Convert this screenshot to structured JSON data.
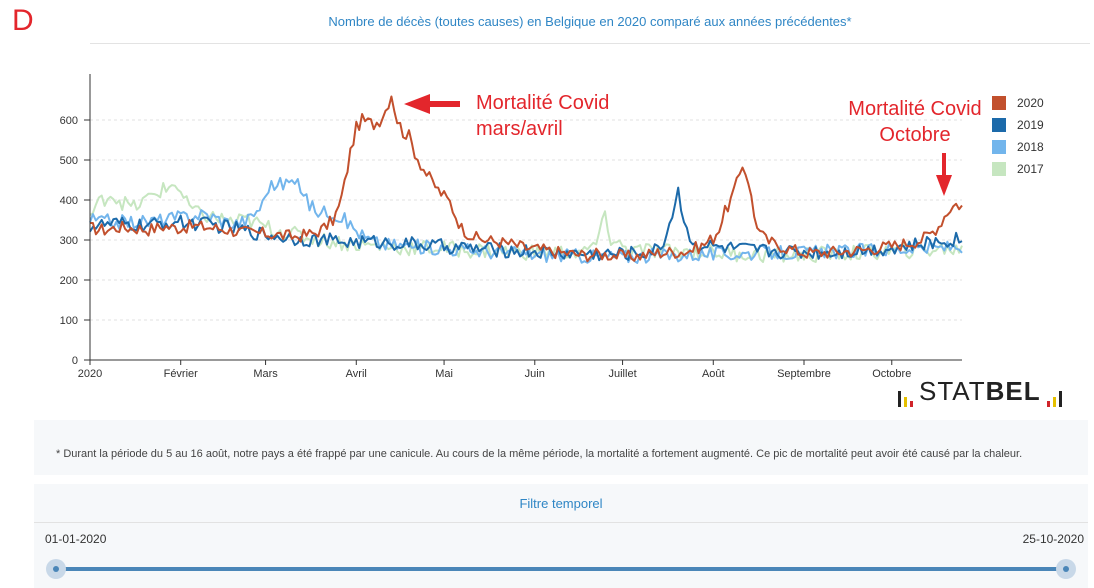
{
  "panel_letter": "D",
  "chart_data": {
    "type": "line",
    "title": "Nombre de décès (toutes causes) en Belgique en 2020 comparé aux années précédentes*",
    "ylim": [
      0,
      700
    ],
    "yticks": [
      0,
      100,
      200,
      300,
      400,
      500,
      600
    ],
    "x_range_days": [
      1,
      299
    ],
    "x_tick_days": [
      1,
      32,
      61,
      92,
      122,
      153,
      183,
      214,
      245,
      275
    ],
    "xtick_labels": [
      "2020",
      "Février",
      "Mars",
      "Avril",
      "Mai",
      "Juin",
      "Juillet",
      "Août",
      "Septembre",
      "Octobre"
    ],
    "grid": true,
    "legend_position": "right",
    "series": [
      {
        "name": "2020",
        "color": "#c2502d",
        "anchors": [
          [
            1,
            330
          ],
          [
            6,
            325
          ],
          [
            11,
            332
          ],
          [
            16,
            330
          ],
          [
            21,
            326
          ],
          [
            26,
            334
          ],
          [
            31,
            330
          ],
          [
            36,
            335
          ],
          [
            41,
            332
          ],
          [
            46,
            328
          ],
          [
            51,
            322
          ],
          [
            56,
            318
          ],
          [
            61,
            316
          ],
          [
            66,
            312
          ],
          [
            71,
            308
          ],
          [
            74,
            312
          ],
          [
            78,
            318
          ],
          [
            81,
            330
          ],
          [
            84,
            350
          ],
          [
            86,
            380
          ],
          [
            88,
            440
          ],
          [
            90,
            520
          ],
          [
            92,
            580
          ],
          [
            94,
            600
          ],
          [
            96,
            595
          ],
          [
            98,
            590
          ],
          [
            100,
            600
          ],
          [
            102,
            625
          ],
          [
            104,
            665
          ],
          [
            106,
            600
          ],
          [
            108,
            570
          ],
          [
            110,
            560
          ],
          [
            112,
            520
          ],
          [
            114,
            490
          ],
          [
            116,
            465
          ],
          [
            118,
            445
          ],
          [
            120,
            425
          ],
          [
            122,
            410
          ],
          [
            124,
            395
          ],
          [
            126,
            360
          ],
          [
            128,
            330
          ],
          [
            130,
            318
          ],
          [
            133,
            305
          ],
          [
            136,
            300
          ],
          [
            140,
            296
          ],
          [
            145,
            290
          ],
          [
            150,
            280
          ],
          [
            155,
            276
          ],
          [
            160,
            270
          ],
          [
            165,
            266
          ],
          [
            170,
            262
          ],
          [
            175,
            265
          ],
          [
            180,
            262
          ],
          [
            185,
            258
          ],
          [
            190,
            262
          ],
          [
            195,
            268
          ],
          [
            200,
            270
          ],
          [
            205,
            272
          ],
          [
            210,
            285
          ],
          [
            214,
            305
          ],
          [
            216,
            330
          ],
          [
            218,
            370
          ],
          [
            220,
            400
          ],
          [
            222,
            440
          ],
          [
            224,
            490
          ],
          [
            226,
            450
          ],
          [
            228,
            360
          ],
          [
            230,
            320
          ],
          [
            232,
            300
          ],
          [
            235,
            290
          ],
          [
            240,
            278
          ],
          [
            245,
            268
          ],
          [
            250,
            268
          ],
          [
            255,
            270
          ],
          [
            260,
            272
          ],
          [
            265,
            275
          ],
          [
            270,
            280
          ],
          [
            275,
            285
          ],
          [
            280,
            292
          ],
          [
            285,
            300
          ],
          [
            288,
            315
          ],
          [
            291,
            335
          ],
          [
            293,
            360
          ],
          [
            295,
            380
          ],
          [
            297,
            390
          ],
          [
            299,
            385
          ]
        ],
        "amp": 16
      },
      {
        "name": "2019",
        "color": "#1c6aaa",
        "anchors": [
          [
            1,
            335
          ],
          [
            10,
            340
          ],
          [
            20,
            335
          ],
          [
            30,
            345
          ],
          [
            40,
            340
          ],
          [
            50,
            330
          ],
          [
            60,
            315
          ],
          [
            70,
            305
          ],
          [
            80,
            300
          ],
          [
            90,
            295
          ],
          [
            100,
            295
          ],
          [
            110,
            290
          ],
          [
            120,
            285
          ],
          [
            130,
            280
          ],
          [
            140,
            275
          ],
          [
            150,
            272
          ],
          [
            160,
            268
          ],
          [
            170,
            265
          ],
          [
            180,
            265
          ],
          [
            190,
            268
          ],
          [
            195,
            275
          ],
          [
            198,
            310
          ],
          [
            200,
            370
          ],
          [
            202,
            428
          ],
          [
            203,
            380
          ],
          [
            205,
            320
          ],
          [
            208,
            290
          ],
          [
            215,
            282
          ],
          [
            225,
            276
          ],
          [
            235,
            272
          ],
          [
            245,
            270
          ],
          [
            255,
            270
          ],
          [
            265,
            275
          ],
          [
            275,
            280
          ],
          [
            285,
            288
          ],
          [
            295,
            300
          ],
          [
            299,
            305
          ]
        ],
        "amp": 18
      },
      {
        "name": "2018",
        "color": "#72b5ec",
        "anchors": [
          [
            1,
            350
          ],
          [
            10,
            345
          ],
          [
            20,
            345
          ],
          [
            30,
            355
          ],
          [
            40,
            365
          ],
          [
            50,
            340
          ],
          [
            55,
            350
          ],
          [
            60,
            390
          ],
          [
            62,
            435
          ],
          [
            66,
            440
          ],
          [
            70,
            445
          ],
          [
            74,
            425
          ],
          [
            76,
            385
          ],
          [
            80,
            370
          ],
          [
            84,
            370
          ],
          [
            88,
            350
          ],
          [
            95,
            305
          ],
          [
            100,
            290
          ],
          [
            110,
            285
          ],
          [
            120,
            280
          ],
          [
            130,
            275
          ],
          [
            140,
            270
          ],
          [
            150,
            265
          ],
          [
            160,
            262
          ],
          [
            170,
            260
          ],
          [
            180,
            258
          ],
          [
            190,
            260
          ],
          [
            200,
            262
          ],
          [
            210,
            265
          ],
          [
            220,
            265
          ],
          [
            230,
            268
          ],
          [
            240,
            268
          ],
          [
            250,
            270
          ],
          [
            260,
            272
          ],
          [
            270,
            275
          ],
          [
            280,
            278
          ],
          [
            290,
            280
          ],
          [
            299,
            285
          ]
        ],
        "amp": 18
      },
      {
        "name": "2017",
        "color": "#c6e6c0",
        "anchors": [
          [
            1,
            360
          ],
          [
            5,
            400
          ],
          [
            8,
            415
          ],
          [
            12,
            395
          ],
          [
            16,
            380
          ],
          [
            20,
            400
          ],
          [
            24,
            420
          ],
          [
            28,
            430
          ],
          [
            30,
            445
          ],
          [
            34,
            390
          ],
          [
            38,
            365
          ],
          [
            44,
            355
          ],
          [
            50,
            345
          ],
          [
            55,
            350
          ],
          [
            60,
            335
          ],
          [
            70,
            315
          ],
          [
            80,
            300
          ],
          [
            90,
            290
          ],
          [
            100,
            285
          ],
          [
            110,
            280
          ],
          [
            120,
            280
          ],
          [
            130,
            275
          ],
          [
            140,
            272
          ],
          [
            150,
            270
          ],
          [
            160,
            268
          ],
          [
            170,
            268
          ],
          [
            175,
            300
          ],
          [
            177,
            370
          ],
          [
            179,
            300
          ],
          [
            185,
            275
          ],
          [
            195,
            272
          ],
          [
            205,
            270
          ],
          [
            215,
            268
          ],
          [
            225,
            265
          ],
          [
            235,
            262
          ],
          [
            245,
            262
          ],
          [
            255,
            265
          ],
          [
            265,
            268
          ],
          [
            275,
            272
          ],
          [
            285,
            275
          ],
          [
            295,
            278
          ],
          [
            299,
            275
          ]
        ],
        "amp": 20
      }
    ]
  },
  "annotations": {
    "covid1_line1": "Mortalité Covid",
    "covid1_line2": "mars/avril",
    "covid2_line1": "Mortalité Covid",
    "covid2_line2": "Octobre"
  },
  "logo": {
    "part1": "STAT",
    "part2": "BEL"
  },
  "footnote": "* Durant la période du 5 au 16 août, notre pays a été frappé par une canicule. Au cours de la même période, la mortalité a fortement augmenté. Ce pic de mortalité peut avoir été causé par la chaleur.",
  "time_filter": {
    "title": "Filtre temporel",
    "start_label": "01-01-2020",
    "end_label": "25-10-2020",
    "range_fraction": [
      0,
      1
    ]
  },
  "colors": {
    "accent": "#2f86c5",
    "annotation": "#e3262c",
    "slider": "#4a86b8"
  }
}
